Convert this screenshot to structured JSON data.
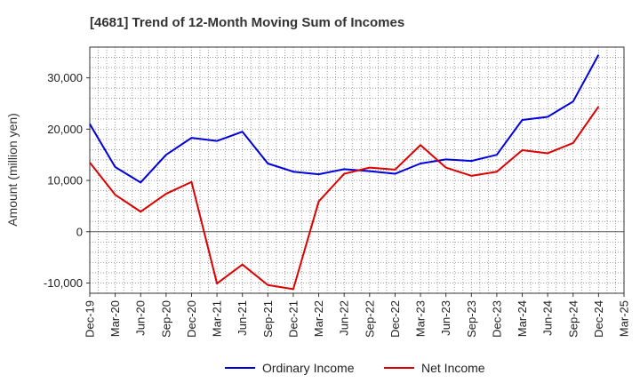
{
  "chart_data": {
    "type": "line",
    "title": "[4681]  Trend of 12-Month Moving Sum of Incomes",
    "xlabel": "",
    "ylabel": "Amount (million yen)",
    "ylim": [
      -12000,
      36000
    ],
    "yticks": [
      -10000,
      0,
      10000,
      20000,
      30000
    ],
    "ytick_labels": [
      "-10,000",
      "0",
      "10,000",
      "20,000",
      "30,000"
    ],
    "grid": true,
    "legend_position": "bottom-center",
    "categories": [
      "Dec-19",
      "Mar-20",
      "Jun-20",
      "Sep-20",
      "Dec-20",
      "Mar-21",
      "Jun-21",
      "Sep-21",
      "Dec-21",
      "Mar-22",
      "Jun-22",
      "Sep-22",
      "Dec-22",
      "Mar-23",
      "Jun-23",
      "Sep-23",
      "Dec-23",
      "Mar-24",
      "Jun-24",
      "Sep-24",
      "Dec-24",
      "Mar-25"
    ],
    "series": [
      {
        "name": "Ordinary Income",
        "color": "#0000dd",
        "values": [
          21000,
          12600,
          9600,
          15000,
          18300,
          17700,
          19500,
          13300,
          11700,
          11200,
          12200,
          11800,
          11300,
          13300,
          14100,
          13800,
          15000,
          21800,
          22400,
          25400,
          34500,
          null
        ]
      },
      {
        "name": "Net Income",
        "color": "#dd0000",
        "values": [
          13500,
          7200,
          3900,
          7400,
          9700,
          -10100,
          -6400,
          -10400,
          -11200,
          5900,
          11300,
          12500,
          12100,
          16900,
          12500,
          10900,
          11700,
          15900,
          15300,
          17300,
          24400,
          null
        ]
      }
    ]
  }
}
